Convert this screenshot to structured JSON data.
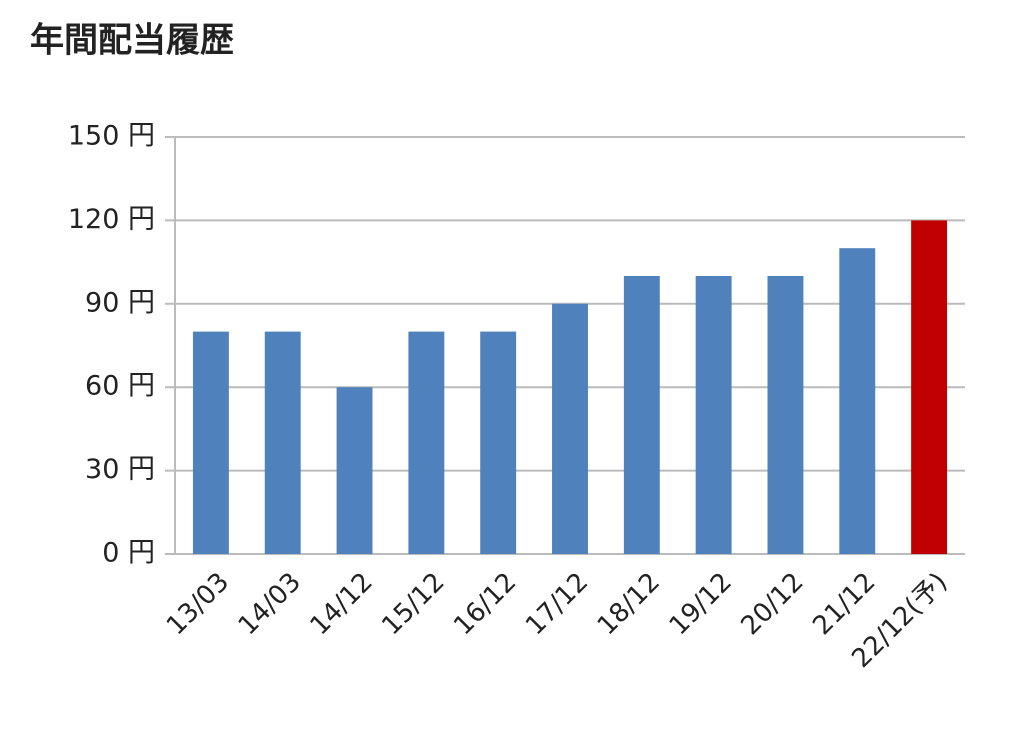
{
  "chart_data": {
    "type": "bar",
    "title": "年間配当履歴",
    "categories": [
      "13/03",
      "14/03",
      "14/12",
      "15/12",
      "16/12",
      "17/12",
      "18/12",
      "19/12",
      "20/12",
      "21/12",
      "22/12(予)"
    ],
    "values": [
      80,
      80,
      60,
      80,
      80,
      90,
      100,
      100,
      100,
      110,
      120
    ],
    "colors": [
      "#4f81bd",
      "#4f81bd",
      "#4f81bd",
      "#4f81bd",
      "#4f81bd",
      "#4f81bd",
      "#4f81bd",
      "#4f81bd",
      "#4f81bd",
      "#4f81bd",
      "#c00000"
    ],
    "ylim": [
      0,
      150
    ],
    "yticks": [
      {
        "value": 0,
        "label": "0 円"
      },
      {
        "value": 30,
        "label": "30 円"
      },
      {
        "value": 60,
        "label": "60 円"
      },
      {
        "value": 90,
        "label": "90 円"
      },
      {
        "value": 120,
        "label": "120 円"
      },
      {
        "value": 150,
        "label": "150 円"
      }
    ],
    "grid": true
  }
}
